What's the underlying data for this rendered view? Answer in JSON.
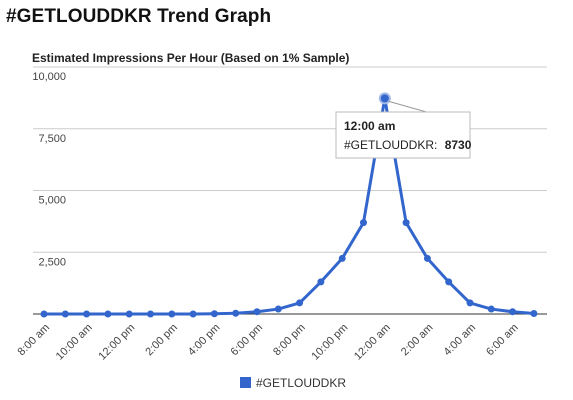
{
  "page": {
    "title": "#GETLOUDDKR Trend Graph"
  },
  "colors": {
    "series": "#3366cc",
    "grid": "#cccccc",
    "axis": "#333333"
  },
  "chart_data": {
    "type": "line",
    "title": "Estimated Impressions Per Hour (Based on 1% Sample)",
    "xlabel": "",
    "ylabel": "",
    "ylim": [
      0,
      10000
    ],
    "grid": true,
    "legend_position": "bottom",
    "y_ticks": [
      "10,000",
      "7,500",
      "5,000",
      "2,500"
    ],
    "x_tick_labels": [
      "8:00 am",
      "10:00 am",
      "12:00 pm",
      "2:00 pm",
      "4:00 pm",
      "6:00 pm",
      "8:00 pm",
      "10:00 pm",
      "12:00 am",
      "2:00 am",
      "4:00 am",
      "6:00 am"
    ],
    "series": [
      {
        "name": "#GETLOUDDKR",
        "values": [
          0,
          0,
          0,
          0,
          0,
          0,
          0,
          0,
          10,
          30,
          90,
          200,
          450,
          1300,
          2250,
          3700,
          8730,
          3700,
          2250,
          1300,
          450,
          200,
          90,
          20
        ]
      }
    ],
    "tooltip": {
      "time": "12:00 am",
      "series_label": "#GETLOUDDKR:",
      "value": "8730"
    }
  }
}
